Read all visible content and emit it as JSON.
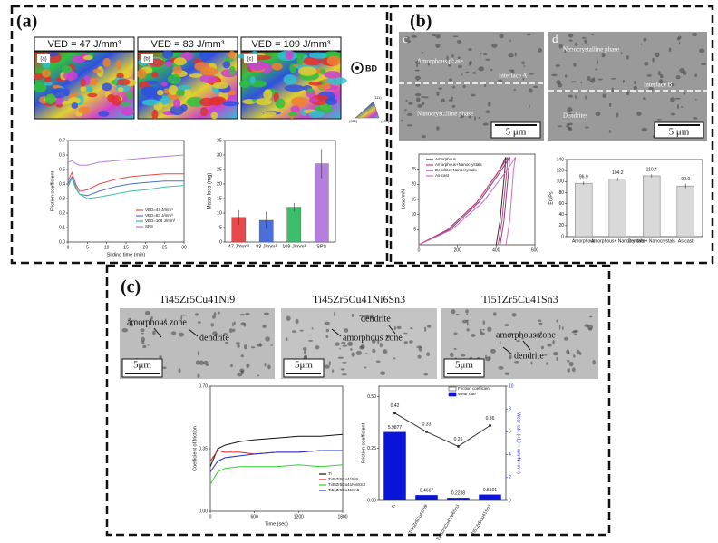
{
  "panel_a": {
    "label": "(a)",
    "maps": [
      {
        "caption": "VED = 47 J/mm³",
        "tag": "(a)"
      },
      {
        "caption": "VED = 83 J/mm³",
        "tag": "(b)"
      },
      {
        "caption": "VED = 109 J/mm³",
        "tag": "(c)"
      }
    ],
    "direction": "BD",
    "ipf_labels": [
      "(111)",
      "(001)",
      "(101)"
    ],
    "friction_chart": {
      "type": "line",
      "x_label": "Sliding time (min)",
      "y_label": "Friction coefficient",
      "x": [
        0,
        1,
        2,
        3,
        5,
        8,
        12,
        16,
        20,
        25,
        30
      ],
      "xlim": [
        0,
        30
      ],
      "xticks": [
        0,
        5,
        10,
        15,
        20,
        25,
        30
      ],
      "ylim": [
        0,
        0.7
      ],
      "yticks": [
        {
          "value": 0,
          "label": "0.0"
        },
        0.1,
        0.2,
        0.3,
        0.4,
        0.5,
        0.6,
        0.7
      ],
      "series": [
        {
          "name": "VED=47 J/mm³",
          "color": "#e8494a",
          "values": [
            0.42,
            0.48,
            0.4,
            0.35,
            0.36,
            0.4,
            0.43,
            0.45,
            0.46,
            0.47,
            0.47
          ]
        },
        {
          "name": "VED=83 J/mm³",
          "color": "#4a6fd8",
          "values": [
            0.4,
            0.45,
            0.38,
            0.33,
            0.32,
            0.35,
            0.38,
            0.4,
            0.41,
            0.42,
            0.42
          ]
        },
        {
          "name": "VED=109 J/mm³",
          "color": "#3dbfa8",
          "values": [
            0.38,
            0.44,
            0.37,
            0.33,
            0.3,
            0.31,
            0.33,
            0.35,
            0.36,
            0.38,
            0.39
          ]
        },
        {
          "name": "SPS",
          "color": "#b57ee0",
          "values": [
            0.55,
            0.56,
            0.54,
            0.53,
            0.53,
            0.55,
            0.56,
            0.57,
            0.58,
            0.59,
            0.6
          ]
        }
      ]
    },
    "mass_chart": {
      "type": "bar",
      "y_label": "Mass loss (mg)",
      "categories": [
        "47 J/mm³",
        "83 J/mm³",
        "109 J/mm³",
        "SPS"
      ],
      "values": [
        8.5,
        7.5,
        12,
        27
      ],
      "errors": [
        2.5,
        3,
        1.5,
        5
      ],
      "colors": [
        "#e8494a",
        "#4a6fd8",
        "#3dbf6a",
        "#b57ee0"
      ],
      "ylim": [
        0,
        35
      ],
      "yticks": [
        0,
        5,
        10,
        15,
        20,
        25,
        30,
        35
      ]
    }
  },
  "panel_b": {
    "label": "(b)",
    "images": [
      {
        "tag": "c",
        "texts": [
          "Amorphous phase",
          "Interface A",
          "Nanocrystalline phase"
        ],
        "scale": "5 μm"
      },
      {
        "tag": "d",
        "texts": [
          "Nanocrystalline phase",
          "Interface B",
          "Dendrites"
        ],
        "scale": "5 μm"
      }
    ],
    "load_chart": {
      "type": "line",
      "y_label": "Load/mN",
      "xlim": [
        0,
        600
      ],
      "xticks": [
        0,
        200,
        400,
        600
      ],
      "ylim": [
        0,
        30
      ],
      "yticks": [
        5,
        10,
        15,
        20,
        25
      ],
      "series": [
        {
          "name": "Amorphous",
          "color": "#333333",
          "x": [
            0,
            150,
            300,
            420,
            450,
            445,
            420,
            400
          ],
          "values": [
            0,
            5,
            14,
            25,
            29,
            25,
            8,
            0
          ]
        },
        {
          "name": "Amorphous+Nanocrystals",
          "color": "#d04070",
          "x": [
            0,
            150,
            300,
            420,
            460,
            455,
            430,
            410
          ],
          "values": [
            0,
            5,
            14,
            25,
            29,
            25,
            8,
            0
          ]
        },
        {
          "name": "Dendrite+Nanocrystals",
          "color": "#8040a0",
          "x": [
            0,
            160,
            310,
            430,
            470,
            465,
            440,
            420
          ],
          "values": [
            0,
            5,
            14,
            25,
            29,
            25,
            8,
            0
          ]
        },
        {
          "name": "As-cast",
          "color": "#d070c0",
          "x": [
            0,
            170,
            330,
            460,
            500,
            490,
            470,
            450
          ],
          "values": [
            0,
            5,
            14,
            25,
            29,
            25,
            8,
            0
          ]
        }
      ]
    },
    "egp_chart": {
      "type": "bar",
      "y_label": "EGPs",
      "categories": [
        "Amorphous",
        "Amorphous+ Nanocrystals",
        "Dendrite+ Nanocrystals",
        "As-cast"
      ],
      "values": [
        96.9,
        104.2,
        110.4,
        92.0
      ],
      "value_labels": [
        "96.9",
        "104.2",
        "110.4",
        "92.0"
      ],
      "errors": [
        3,
        3,
        3,
        4
      ],
      "colors": [
        "#d9d9d9",
        "#d9d9d9",
        "#d9d9d9",
        "#d9d9d9"
      ],
      "ylim": [
        0,
        140
      ],
      "yticks": [
        0,
        20,
        40,
        60,
        80,
        100,
        120,
        140
      ]
    }
  },
  "panel_c": {
    "label": "(c)",
    "images": [
      {
        "title": "Ti45Zr5Cu41Ni9",
        "texts": [
          "amorphous zone",
          "dendrite"
        ],
        "scale": "5μm"
      },
      {
        "title": "Ti45Zr5Cu41Ni6Sn3",
        "texts": [
          "dendrite",
          "amorphous zone"
        ],
        "scale": "5μm"
      },
      {
        "title": "Ti51Zr5Cu41Sn3",
        "texts": [
          "amorphous zone",
          "dendrite"
        ],
        "scale": "5μm"
      }
    ],
    "friction_chart": {
      "type": "line",
      "x_label": "Time (sec)",
      "y_label": "Coefficient of friction",
      "x": [
        0,
        100,
        200,
        400,
        600,
        900,
        1200,
        1500,
        1800
      ],
      "xlim": [
        0,
        1800
      ],
      "xticks": [
        0,
        600,
        1200,
        1800
      ],
      "ylim": [
        0,
        0.7
      ],
      "yticks": [
        {
          "value": 0,
          "label": "0.00"
        },
        0.35,
        {
          "value": 0.7,
          "label": "0.70"
        }
      ],
      "series": [
        {
          "name": "Ti",
          "color": "#111111",
          "values": [
            0.25,
            0.35,
            0.37,
            0.39,
            0.4,
            0.41,
            0.42,
            0.42,
            0.43
          ]
        },
        {
          "name": "Ti45Zr5Cu41Ni9",
          "color": "#e02020",
          "values": [
            0.28,
            0.34,
            0.33,
            0.33,
            0.32,
            0.33,
            0.33,
            0.34,
            0.34
          ]
        },
        {
          "name": "Ti45Zr5Cu41Ni6Sn3",
          "color": "#30d030",
          "values": [
            0.15,
            0.22,
            0.24,
            0.25,
            0.25,
            0.25,
            0.26,
            0.25,
            0.26
          ]
        },
        {
          "name": "Ti51Zr5Cu41Sn3",
          "color": "#2030d0",
          "values": [
            0.22,
            0.28,
            0.3,
            0.31,
            0.32,
            0.33,
            0.33,
            0.34,
            0.34
          ]
        }
      ]
    },
    "wear_chart": {
      "type": "bar_line",
      "y_label": "Friction coefficient",
      "y2_label": "Wear rate (×10⁻⁵ mm³N⁻¹m⁻¹)",
      "categories": [
        "Ti",
        "Ti45Zr5Cu41Ni9",
        "Ti45Zr5Cu41Ni6Sn3",
        "Ti51Zr5Cu41Sn3"
      ],
      "ylim": [
        0,
        0.55
      ],
      "yticks": [
        {
          "value": 0,
          "label": "0.00"
        },
        0.25,
        {
          "value": 0.5,
          "label": "0.50"
        }
      ],
      "y2lim": [
        0,
        10
      ],
      "y2ticks": [
        0,
        2,
        4,
        6,
        8,
        10
      ],
      "series": [
        {
          "name": "Friction coefficient",
          "type": "line",
          "color": "#333333",
          "values": [
            0.42,
            0.33,
            0.26,
            0.36
          ]
        },
        {
          "name": "Wear rate",
          "type": "bar",
          "axis": "y2",
          "color": "#0a14d8",
          "values": [
            5.9877,
            0.4667,
            0.2288,
            0.5101
          ]
        }
      ]
    }
  }
}
